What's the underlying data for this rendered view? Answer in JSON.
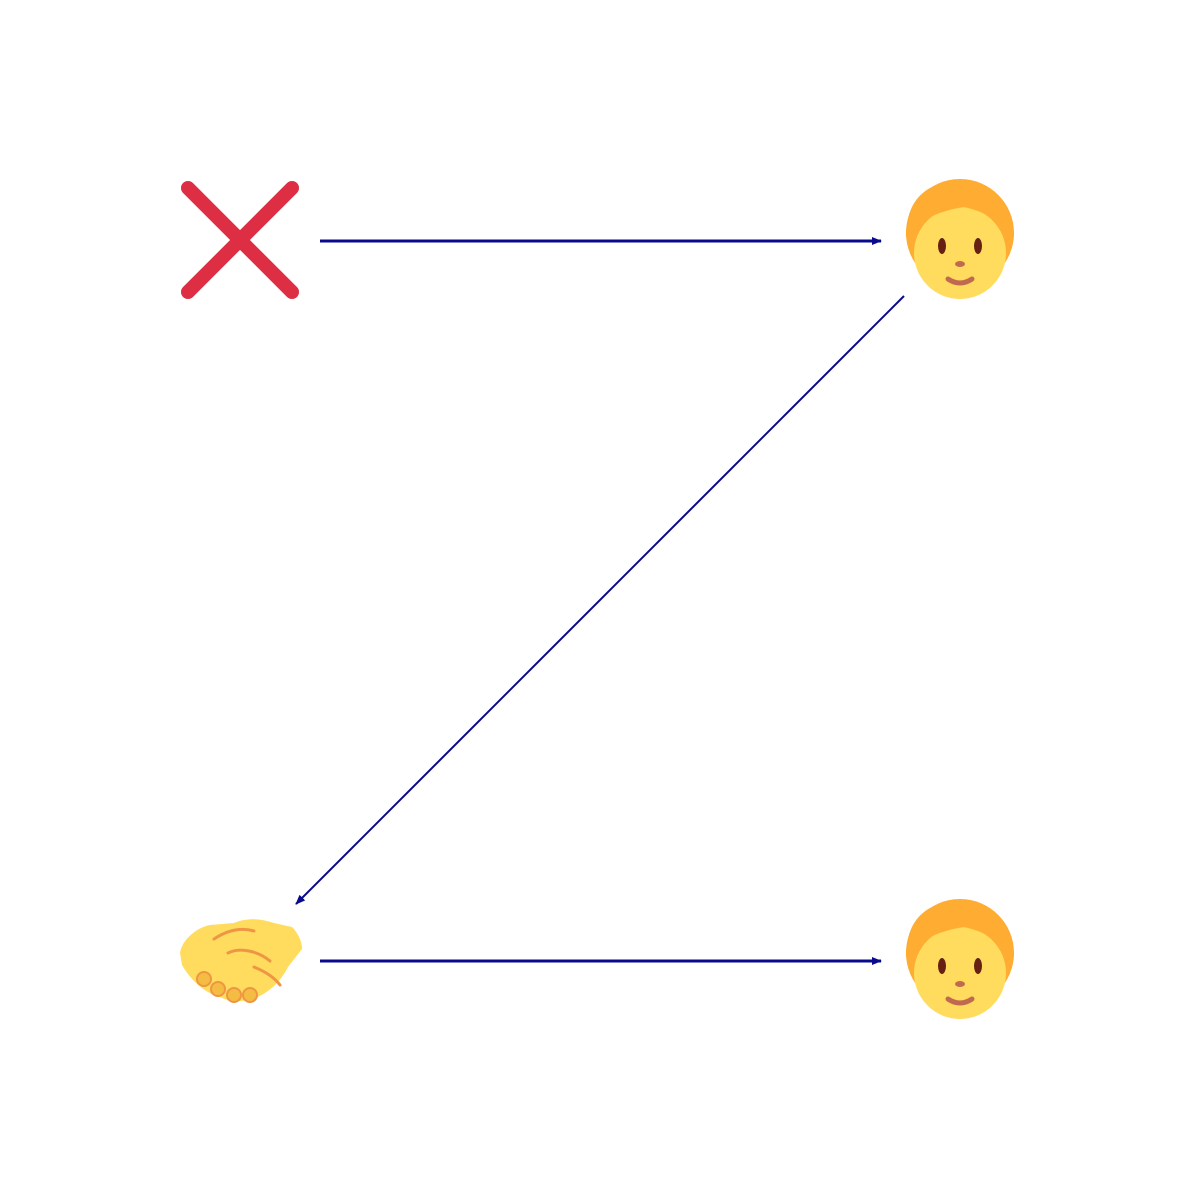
{
  "diagram": {
    "nodes": [
      {
        "id": "cross",
        "icon": "cross-mark-icon"
      },
      {
        "id": "person-top",
        "icon": "person-icon"
      },
      {
        "id": "handshake",
        "icon": "handshake-icon"
      },
      {
        "id": "person-bottom",
        "icon": "person-icon"
      }
    ],
    "edges": [
      {
        "from": "cross",
        "to": "person-top"
      },
      {
        "from": "person-top",
        "to": "handshake"
      },
      {
        "from": "handshake",
        "to": "person-bottom"
      }
    ]
  },
  "colors": {
    "background": "#ffffff",
    "arrow": "#0a0a8c",
    "cross": "#dd2e44",
    "hair": "#ffac33",
    "skin": "#ffdc5d",
    "eyes": "#662113",
    "mouth": "#c1694f",
    "handshake": "#ffdc5d",
    "handshake_line": "#ef9645"
  }
}
